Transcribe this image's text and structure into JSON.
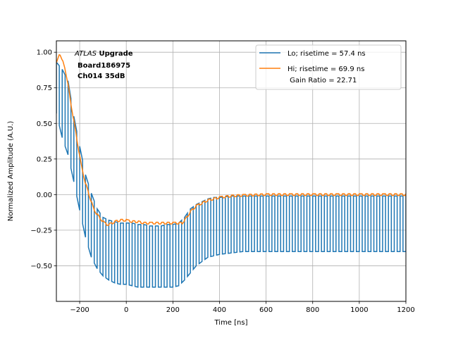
{
  "chart_data": {
    "type": "line",
    "xlabel": "Time [ns]",
    "ylabel": "Normalized Amplitude (A.U.)",
    "xlim": [
      -300,
      1200
    ],
    "ylim": [
      -0.75,
      1.08
    ],
    "xticks": [
      -200,
      0,
      200,
      400,
      600,
      800,
      1000,
      1200
    ],
    "xtick_labels": [
      "−200",
      "0",
      "200",
      "400",
      "600",
      "800",
      "1000",
      "1200"
    ],
    "yticks": [
      -0.5,
      -0.25,
      0.0,
      0.25,
      0.5,
      0.75,
      1.0
    ],
    "ytick_labels": [
      "−0.50",
      "−0.25",
      "0.00",
      "0.25",
      "0.50",
      "0.75",
      "1.00"
    ],
    "grid": true,
    "legend_position": "top-right",
    "annotation": {
      "italic": "ATLAS",
      "line1_rest": " Upgrade",
      "line2": "Board186975",
      "line3": "Ch014 35dB"
    },
    "series": [
      {
        "name": "Lo; risetime = 57.4 ns",
        "color": "#1f77b4",
        "sample_period_ns": 25,
        "x": [
          -300,
          -275,
          -250,
          -225,
          -200,
          -175,
          -150,
          -125,
          -100,
          -75,
          -50,
          -25,
          0,
          25,
          50,
          75,
          100,
          125,
          150,
          175,
          200,
          225,
          250,
          275,
          300,
          325,
          350,
          375,
          400,
          450,
          500,
          600,
          800,
          1000,
          1200
        ],
        "envelope_high": [
          0.93,
          0.88,
          0.8,
          0.55,
          0.34,
          0.14,
          0.01,
          -0.1,
          -0.16,
          -0.18,
          -0.19,
          -0.2,
          -0.2,
          -0.2,
          -0.21,
          -0.21,
          -0.22,
          -0.22,
          -0.22,
          -0.21,
          -0.21,
          -0.2,
          -0.16,
          -0.1,
          -0.07,
          -0.05,
          -0.03,
          -0.02,
          -0.02,
          -0.01,
          -0.01,
          -0.01,
          -0.01,
          -0.01,
          -0.01
        ],
        "envelope_low": [
          0.57,
          0.4,
          0.28,
          0.09,
          -0.11,
          -0.3,
          -0.44,
          -0.52,
          -0.57,
          -0.6,
          -0.62,
          -0.63,
          -0.63,
          -0.64,
          -0.65,
          -0.65,
          -0.65,
          -0.65,
          -0.65,
          -0.65,
          -0.65,
          -0.64,
          -0.6,
          -0.55,
          -0.5,
          -0.47,
          -0.44,
          -0.43,
          -0.42,
          -0.41,
          -0.4,
          -0.4,
          -0.4,
          -0.4,
          -0.4
        ]
      },
      {
        "name": "Hi; risetime = 69.9 ns",
        "name_line2": " Gain Ratio = 22.71",
        "color": "#ff7f0e",
        "x": [
          -300,
          -285,
          -275,
          -260,
          -250,
          -240,
          -225,
          -210,
          -200,
          -190,
          -175,
          -160,
          -150,
          -140,
          -125,
          -110,
          -100,
          -85,
          -75,
          -60,
          -50,
          -25,
          0,
          25,
          50,
          75,
          100,
          125,
          150,
          175,
          200,
          225,
          240,
          250,
          260,
          275,
          300,
          325,
          350,
          375,
          400,
          425,
          450,
          500,
          600,
          700,
          800,
          900,
          1000,
          1100,
          1200
        ],
        "y": [
          0.92,
          0.99,
          0.95,
          0.86,
          0.78,
          0.66,
          0.52,
          0.37,
          0.27,
          0.18,
          0.08,
          0.0,
          -0.05,
          -0.1,
          -0.14,
          -0.17,
          -0.19,
          -0.21,
          -0.21,
          -0.2,
          -0.19,
          -0.18,
          -0.18,
          -0.19,
          -0.19,
          -0.2,
          -0.2,
          -0.2,
          -0.2,
          -0.2,
          -0.2,
          -0.2,
          -0.2,
          -0.18,
          -0.16,
          -0.12,
          -0.08,
          -0.06,
          -0.04,
          -0.03,
          -0.02,
          -0.015,
          -0.01,
          -0.005,
          0.0,
          0.0,
          0.0,
          0.0,
          0.0,
          0.0,
          0.0
        ]
      }
    ]
  }
}
